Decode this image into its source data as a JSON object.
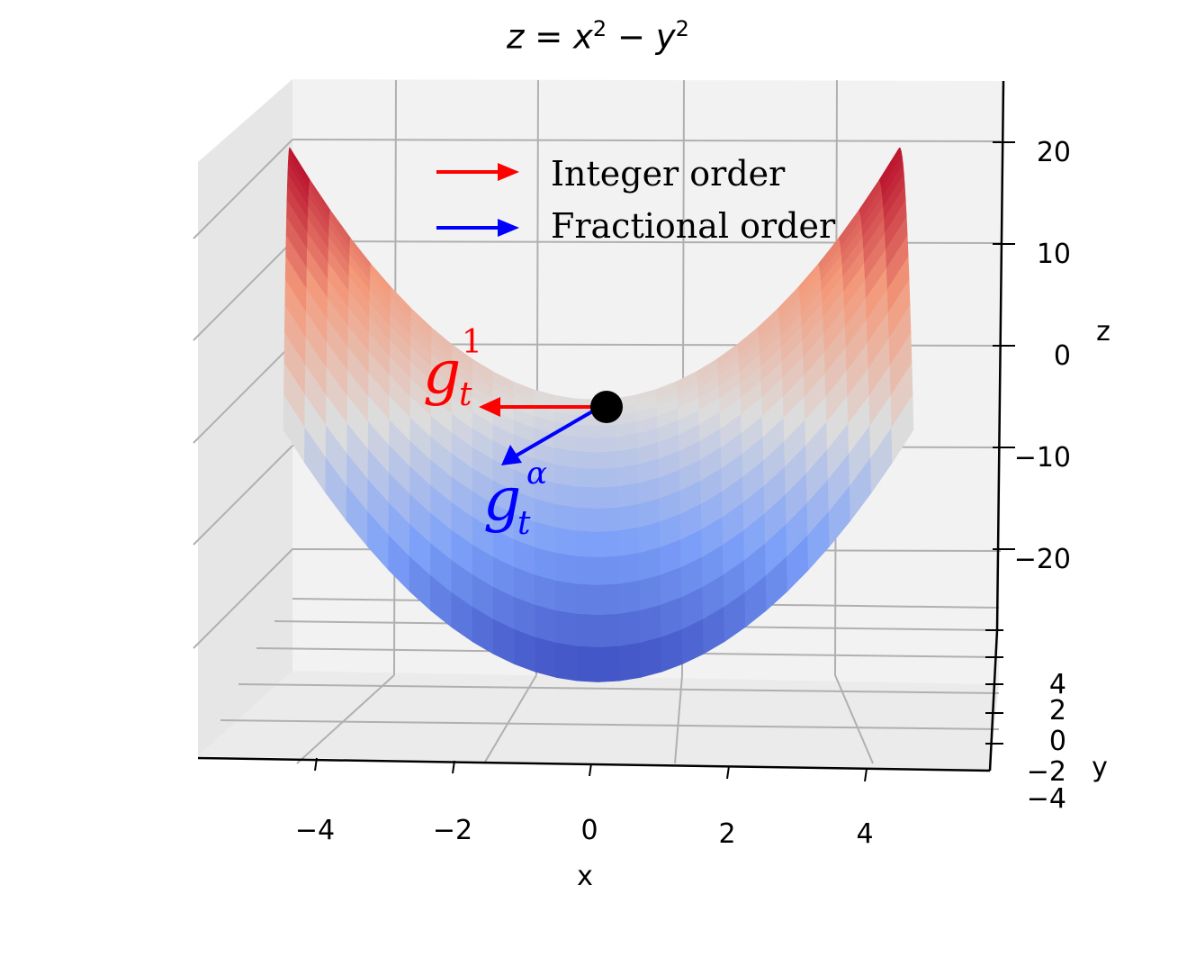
{
  "chart_data": {
    "type": "surface3d",
    "title": {
      "z": "z",
      "eq": "=",
      "x": "x",
      "x_exp": "2",
      "minus": "−",
      "y": "y",
      "y_exp": "2"
    },
    "function": "z = x^2 - y^2",
    "xlabel": "x",
    "ylabel": "y",
    "zlabel": "z",
    "xlim": [
      -5,
      5
    ],
    "ylim": [
      -5,
      5
    ],
    "zlim": [
      -25,
      25
    ],
    "x_ticks": [
      "−4",
      "−2",
      "0",
      "2",
      "4"
    ],
    "y_ticks": [
      "−4",
      "−2",
      "0",
      "2",
      "4"
    ],
    "z_ticks": [
      "20",
      "10",
      "0",
      "−10",
      "−20"
    ],
    "colormap": "coolwarm",
    "colors": {
      "low": "#3b4cc0",
      "mid": "#dddcdc",
      "high": "#b40426",
      "integer_arrow": "#ff0000",
      "fractional_arrow": "#0000ff",
      "point": "#000000"
    },
    "point": {
      "x": 0,
      "y": 0,
      "z": 0
    },
    "legend": {
      "placement": "upper-center",
      "entries": [
        {
          "label": "Integer order",
          "color": "#ff0000"
        },
        {
          "label": "Fractional order",
          "color": "#0000ff"
        }
      ]
    },
    "annotations": {
      "integer": {
        "base": "g",
        "sub": "t",
        "sup": "1"
      },
      "fractional": {
        "base": "g",
        "sub": "t",
        "sup": "α"
      }
    },
    "grid": true
  }
}
